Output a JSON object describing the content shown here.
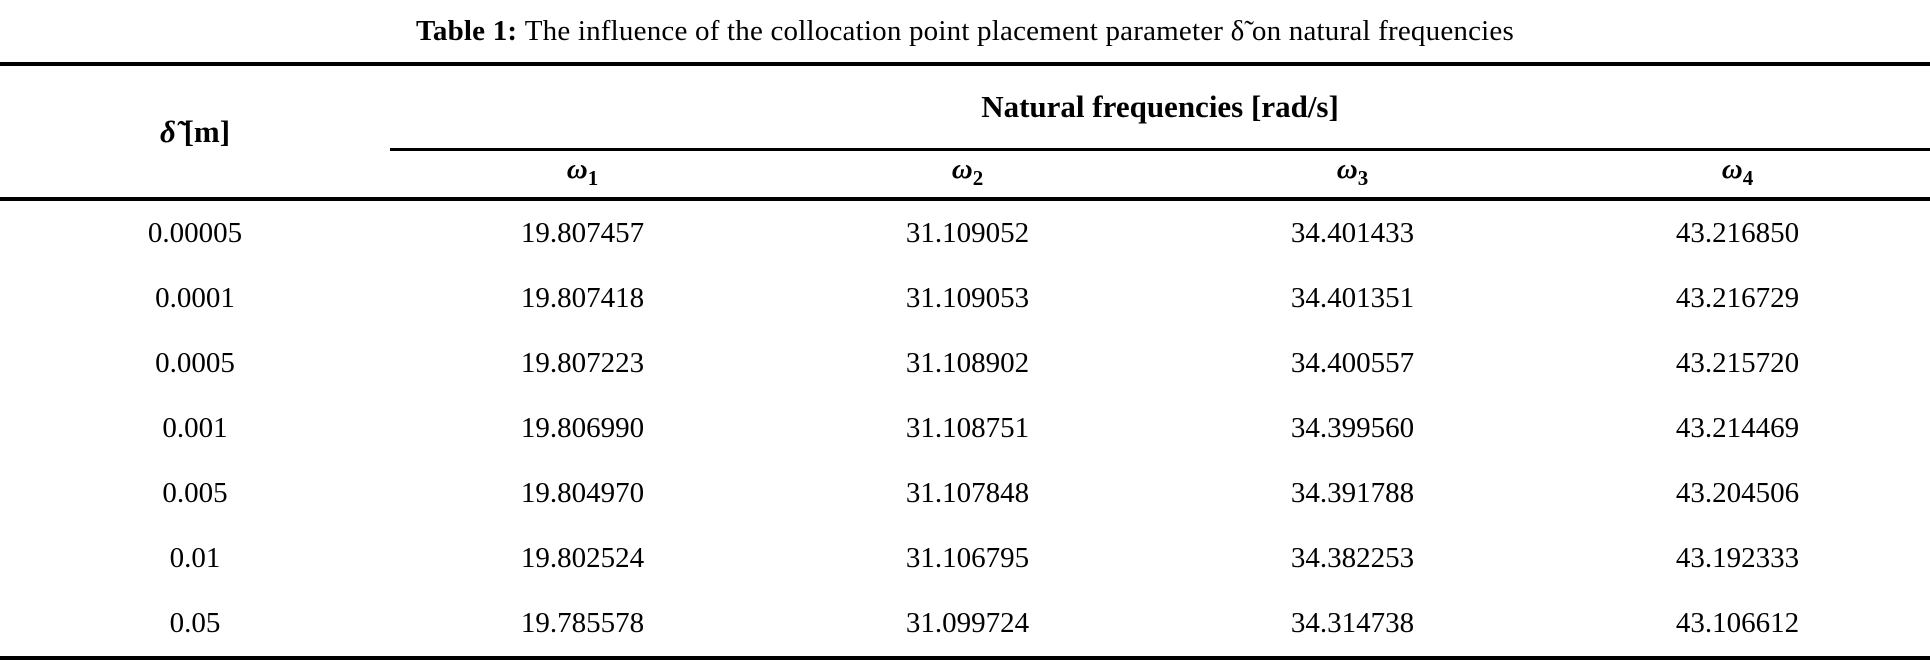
{
  "caption": {
    "label": "Table 1:",
    "text": " The influence of the collocation point placement parameter δ̃ on natural frequencies"
  },
  "table": {
    "col1_header": {
      "symbol": "δ̃",
      "unit": " [m]"
    },
    "span_header": "Natural frequencies [rad/s]",
    "omega_headers": [
      {
        "symbol": "ω",
        "sub": "1"
      },
      {
        "symbol": "ω",
        "sub": "2"
      },
      {
        "symbol": "ω",
        "sub": "3"
      },
      {
        "symbol": "ω",
        "sub": "4"
      }
    ],
    "rows": [
      {
        "delta": "0.00005",
        "values": [
          "19.807457",
          "31.109052",
          "34.401433",
          "43.216850"
        ]
      },
      {
        "delta": "0.0001",
        "values": [
          "19.807418",
          "31.109053",
          "34.401351",
          "43.216729"
        ]
      },
      {
        "delta": "0.0005",
        "values": [
          "19.807223",
          "31.108902",
          "34.400557",
          "43.215720"
        ]
      },
      {
        "delta": "0.001",
        "values": [
          "19.806990",
          "31.108751",
          "34.399560",
          "43.214469"
        ]
      },
      {
        "delta": "0.005",
        "values": [
          "19.804970",
          "31.107848",
          "34.391788",
          "43.204506"
        ]
      },
      {
        "delta": "0.01",
        "values": [
          "19.802524",
          "31.106795",
          "34.382253",
          "43.192333"
        ]
      },
      {
        "delta": "0.05",
        "values": [
          "19.785578",
          "31.099724",
          "34.314738",
          "43.106612"
        ]
      }
    ]
  },
  "colors": {
    "text": "#000000",
    "rule": "#000000",
    "background": "#ffffff"
  }
}
